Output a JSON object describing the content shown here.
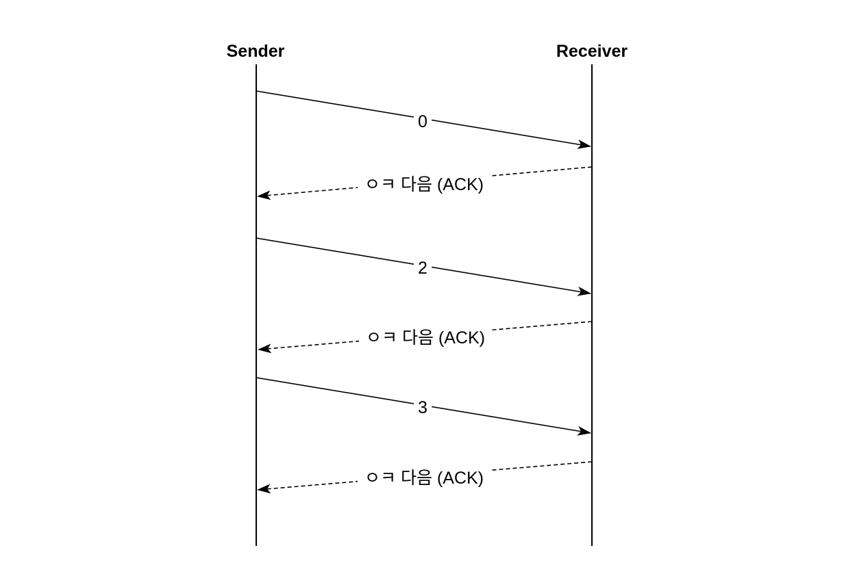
{
  "participants": {
    "sender": "Sender",
    "receiver": "Receiver"
  },
  "messages": [
    {
      "from": "sender",
      "to": "receiver",
      "label": "0",
      "style": "solid"
    },
    {
      "from": "receiver",
      "to": "sender",
      "label": "ㅇㅋ 다음 (ACK)",
      "style": "dashed"
    },
    {
      "from": "sender",
      "to": "receiver",
      "label": "2",
      "style": "solid"
    },
    {
      "from": "receiver",
      "to": "sender",
      "label": "ㅇㅋ 다음 (ACK)",
      "style": "dashed"
    },
    {
      "from": "sender",
      "to": "receiver",
      "label": "3",
      "style": "solid"
    },
    {
      "from": "receiver",
      "to": "sender",
      "label": "ㅇㅋ 다음 (ACK)",
      "style": "dashed"
    }
  ],
  "colors": {
    "line": "#000000",
    "background": "#ffffff"
  }
}
